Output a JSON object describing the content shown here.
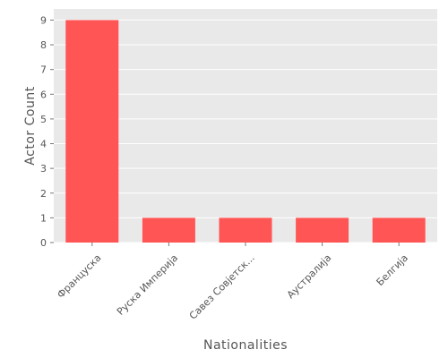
{
  "chart_data": {
    "type": "bar",
    "title": "",
    "xlabel": "Nationalities",
    "ylabel": "Actor Count",
    "categories": [
      "Француска",
      "Руска Империја",
      "Савез Совјетск...",
      "Аустралија",
      "Белгија"
    ],
    "values": [
      9,
      1,
      1,
      1,
      1
    ],
    "ylim": [
      0,
      9.45
    ],
    "yticks": [
      0,
      1,
      2,
      3,
      4,
      5,
      6,
      7,
      8,
      9
    ],
    "grid": true,
    "legend": "none",
    "colors": {
      "bar": "#ff5555",
      "plot_background": "#e9e9e9",
      "grid": "#ffffff",
      "text": "#555555"
    }
  }
}
